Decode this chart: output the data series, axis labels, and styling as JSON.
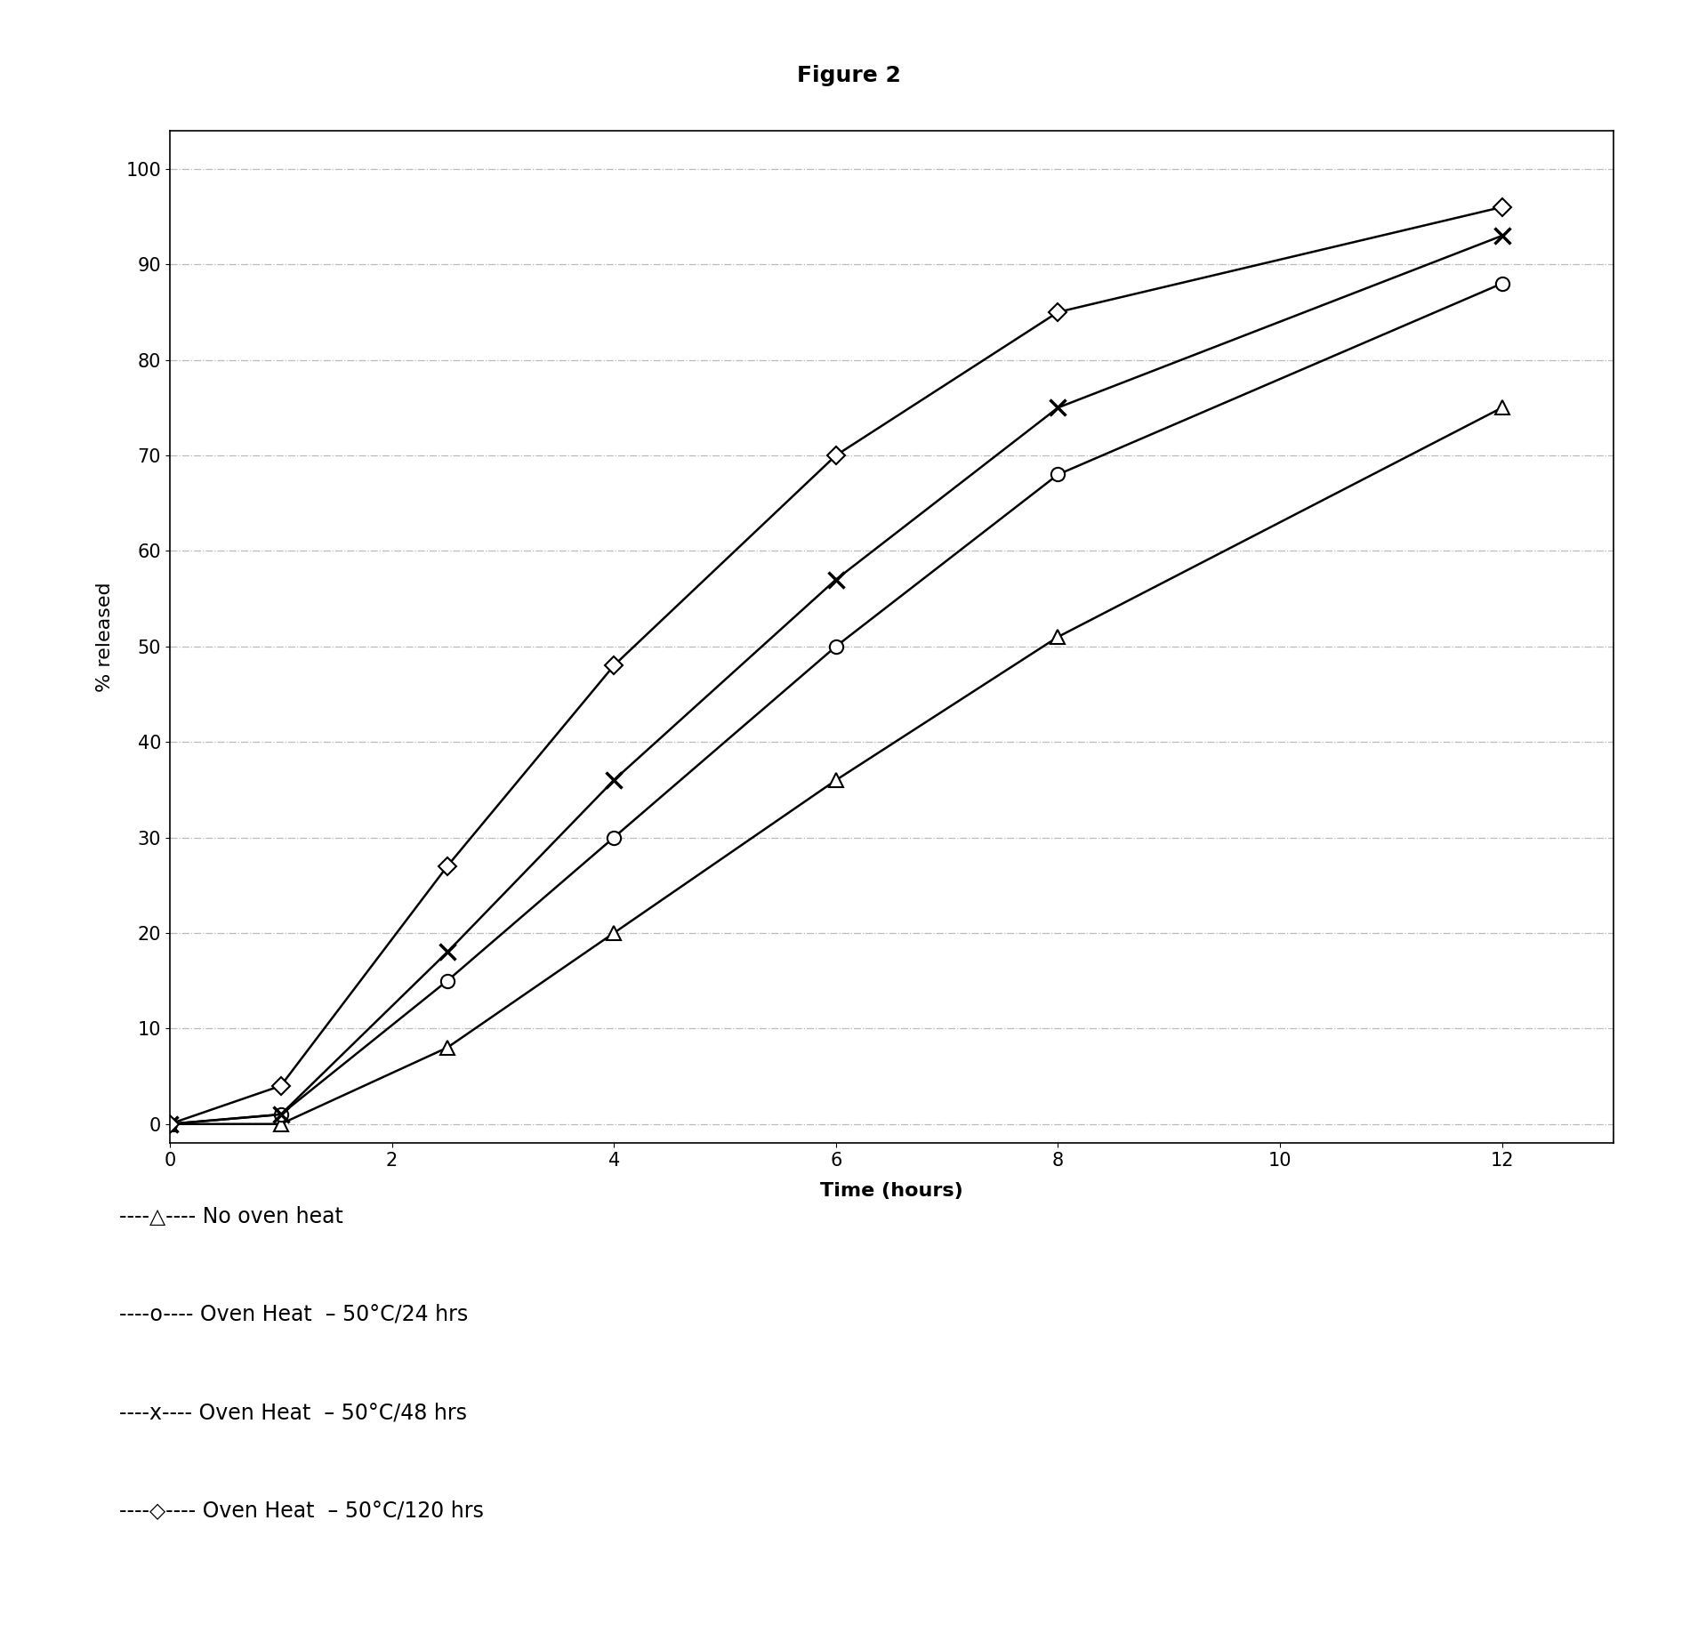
{
  "title": "Figure 2",
  "xlabel": "Time (hours)",
  "ylabel": "% released",
  "xlim": [
    0,
    13
  ],
  "ylim": [
    -2,
    104
  ],
  "xticks": [
    0,
    2,
    4,
    6,
    8,
    10,
    12
  ],
  "yticks": [
    0,
    10,
    20,
    30,
    40,
    50,
    60,
    70,
    80,
    90,
    100
  ],
  "series": [
    {
      "label": "No oven heat",
      "x": [
        0,
        1,
        2.5,
        4,
        6,
        8,
        12
      ],
      "y": [
        0,
        0,
        8,
        20,
        36,
        51,
        75
      ],
      "marker": "^",
      "color": "#000000",
      "linestyle": "-",
      "markersize": 11,
      "linewidth": 1.8,
      "markerfacecolor": "white"
    },
    {
      "label": "Oven Heat 50C/24 hrs",
      "x": [
        0,
        1,
        2.5,
        4,
        6,
        8,
        12
      ],
      "y": [
        0,
        1,
        15,
        30,
        50,
        68,
        88
      ],
      "marker": "o",
      "color": "#000000",
      "linestyle": "-",
      "markersize": 11,
      "linewidth": 1.8,
      "markerfacecolor": "white"
    },
    {
      "label": "Oven Heat 50C/48 hrs",
      "x": [
        0,
        1,
        2.5,
        4,
        6,
        8,
        12
      ],
      "y": [
        0,
        1,
        18,
        36,
        57,
        75,
        93
      ],
      "marker": "x",
      "color": "#000000",
      "linestyle": "-",
      "markersize": 13,
      "linewidth": 1.8,
      "markerfacecolor": "black",
      "markeredgewidth": 2.5
    },
    {
      "label": "Oven Heat 50C/120 hrs",
      "x": [
        0,
        1,
        2.5,
        4,
        6,
        8,
        12
      ],
      "y": [
        0,
        4,
        27,
        48,
        70,
        85,
        96
      ],
      "marker": "D",
      "color": "#000000",
      "linestyle": "-",
      "markersize": 10,
      "linewidth": 1.8,
      "markerfacecolor": "white"
    }
  ],
  "legend_entries": [
    {
      "symbol": "△",
      "prefix": "----",
      "suffix": "---",
      "text": " No oven heat"
    },
    {
      "symbol": "o",
      "prefix": "----",
      "suffix": "---",
      "text": " Oven Heat  – 50°C/24 hrs"
    },
    {
      "symbol": "x",
      "prefix": "----",
      "suffix": "---",
      "text": " Oven Heat  – 50°C/48 hrs"
    },
    {
      "symbol": "◇",
      "prefix": "----",
      "suffix": "---",
      "text": " Oven Heat  – 50°C/120 hrs"
    }
  ],
  "grid_color": "#bbbbbb",
  "grid_linestyle": "-.",
  "background_color": "#ffffff",
  "title_fontsize": 18,
  "axis_label_fontsize": 16,
  "tick_fontsize": 15,
  "legend_fontsize": 17
}
